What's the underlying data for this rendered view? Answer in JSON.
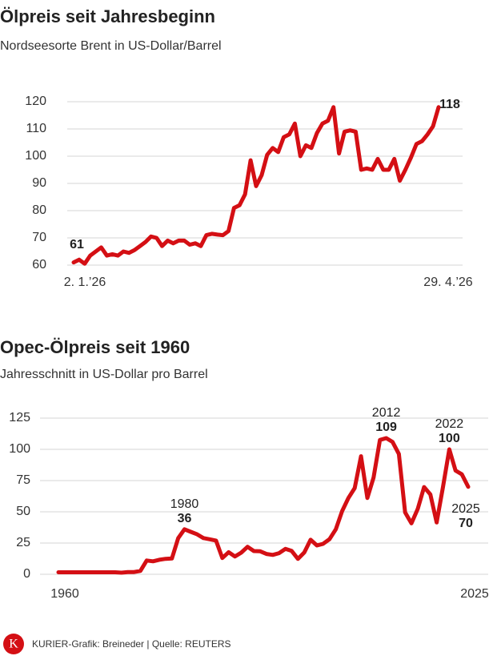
{
  "charts": [
    {
      "chart_data": {
        "type": "line",
        "title": "Ölpreis seit Jahresbeginn",
        "subtitle": "Nordseesorte Brent in US-Dollar/Barrel",
        "categories": [
          "2. 1.’26",
          null,
          null,
          null,
          null,
          null,
          null,
          null,
          null,
          null,
          null,
          null,
          null,
          null,
          null,
          null,
          null,
          null,
          null,
          null,
          null,
          null,
          null,
          null,
          null,
          null,
          null,
          null,
          null,
          null,
          null,
          null,
          null,
          null,
          null,
          null,
          null,
          null,
          null,
          null,
          null,
          null,
          null,
          null,
          null,
          null,
          null,
          null,
          null,
          null,
          null,
          null,
          null,
          null,
          null,
          null,
          null,
          null,
          null,
          null,
          null,
          null,
          null,
          null,
          null,
          null,
          "29. 4.’26"
        ],
        "series": [
          {
            "name": "Brent",
            "color": "#d40f14",
            "values": [
              61,
              62,
              60.5,
              63.5,
              65,
              66.5,
              63.5,
              64,
              63.5,
              65,
              64.5,
              65.5,
              67,
              68.5,
              70.5,
              70,
              67,
              69,
              68,
              69,
              69,
              67.5,
              68,
              67,
              71,
              71.5,
              71.2,
              71,
              72.5,
              81,
              82,
              86,
              98.5,
              89,
              93,
              100.5,
              103,
              101.5,
              107,
              108,
              112,
              100,
              104,
              103,
              108.5,
              112,
              113,
              118,
              101,
              109,
              109.5,
              109,
              95,
              95.5,
              95,
              99,
              95,
              95,
              99,
              91,
              95,
              99.5,
              104.5,
              105.5,
              108,
              111,
              118
            ]
          }
        ],
        "ylim": [
          60,
          120
        ],
        "yticks": [
          60,
          70,
          80,
          90,
          100,
          110,
          120
        ],
        "grid": true
      }
    },
    {
      "chart_data": {
        "type": "line",
        "title": "Opec-Ölpreis seit 1960",
        "subtitle": "Jahresschnitt in US-Dollar pro Barrel",
        "x": [
          1960,
          1961,
          1962,
          1963,
          1964,
          1965,
          1966,
          1967,
          1968,
          1969,
          1970,
          1971,
          1972,
          1973,
          1974,
          1975,
          1976,
          1977,
          1978,
          1979,
          1980,
          1981,
          1982,
          1983,
          1984,
          1985,
          1986,
          1987,
          1988,
          1989,
          1990,
          1991,
          1992,
          1993,
          1994,
          1995,
          1996,
          1997,
          1998,
          1999,
          2000,
          2001,
          2002,
          2003,
          2004,
          2005,
          2006,
          2007,
          2008,
          2009,
          2010,
          2011,
          2012,
          2013,
          2014,
          2015,
          2016,
          2017,
          2018,
          2019,
          2020,
          2021,
          2022,
          2023,
          2024,
          2025
        ],
        "series": [
          {
            "name": "Opec",
            "color": "#d40f14",
            "values": [
              1.6,
              1.6,
              1.6,
              1.6,
              1.6,
              1.6,
              1.6,
              1.6,
              1.6,
              1.6,
              1.3,
              1.7,
              1.8,
              2.7,
              11,
              10.4,
              11.6,
              12.4,
              12.7,
              29,
              36,
              34,
              32,
              29,
              28,
              27,
              13,
              17.7,
              14.2,
              17.3,
              22,
              18.6,
              18.4,
              16.3,
              15.5,
              16.9,
              20.3,
              18.7,
              12.3,
              17.5,
              27.6,
              23.1,
              24.4,
              28.1,
              36,
              50.6,
              61,
              69,
              94.5,
              61,
              77.5,
              107.5,
              109,
              105.9,
              96.3,
              49.5,
              40.8,
              52.4,
              69.8,
              64,
              41.5,
              69.9,
              100,
              83,
              80,
              70
            ]
          }
        ],
        "xlim": [
          1960,
          2025
        ],
        "xticks": [
          1960,
          2025
        ],
        "ylim": [
          0,
          125
        ],
        "yticks": [
          0,
          25,
          50,
          75,
          100,
          125
        ],
        "grid": true
      }
    }
  ],
  "footer": {
    "logo": "K",
    "credit": "KURIER-Grafik: Breineder | Quelle: REUTERS"
  }
}
